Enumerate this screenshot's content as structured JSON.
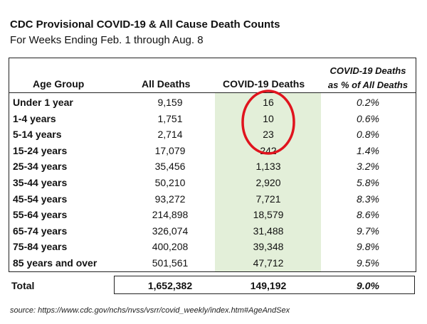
{
  "title": "CDC Provisional COVID-19 & All Cause Death Counts",
  "subtitle": "For Weeks Ending Feb. 1 through Aug. 8",
  "table": {
    "headers": {
      "age_group": "Age Group",
      "all_deaths": "All Deaths",
      "covid_deaths": "COVID-19 Deaths",
      "pct_line1": "COVID-19 Deaths",
      "pct_line2": "as % of All Deaths"
    },
    "rows": [
      {
        "age": "Under 1 year",
        "all": "9,159",
        "covid": "16",
        "pct": "0.2%"
      },
      {
        "age": "1-4 years",
        "all": "1,751",
        "covid": "10",
        "pct": "0.6%"
      },
      {
        "age": "5-14 years",
        "all": "2,714",
        "covid": "23",
        "pct": "0.8%"
      },
      {
        "age": "15-24 years",
        "all": "17,079",
        "covid": "242",
        "pct": "1.4%"
      },
      {
        "age": "25-34 years",
        "all": "35,456",
        "covid": "1,133",
        "pct": "3.2%"
      },
      {
        "age": "35-44 years",
        "all": "50,210",
        "covid": "2,920",
        "pct": "5.8%"
      },
      {
        "age": "45-54 years",
        "all": "93,272",
        "covid": "7,721",
        "pct": "8.3%"
      },
      {
        "age": "55-64 years",
        "all": "214,898",
        "covid": "18,579",
        "pct": "8.6%"
      },
      {
        "age": "65-74 years",
        "all": "326,074",
        "covid": "31,488",
        "pct": "9.7%"
      },
      {
        "age": "75-84 years",
        "all": "400,208",
        "covid": "39,348",
        "pct": "9.8%"
      },
      {
        "age": "85 years and over",
        "all": "501,561",
        "covid": "47,712",
        "pct": "9.5%"
      }
    ],
    "total": {
      "label": "Total",
      "all": "1,652,382",
      "covid": "149,192",
      "pct": "9.0%"
    }
  },
  "source": "source: https://www.cdc.gov/nchs/nvss/vsrr/covid_weekly/index.htm#AgeAndSex",
  "colors": {
    "covid_column_bg": "#e3efd9",
    "annotation_circle": "#e0141e"
  }
}
